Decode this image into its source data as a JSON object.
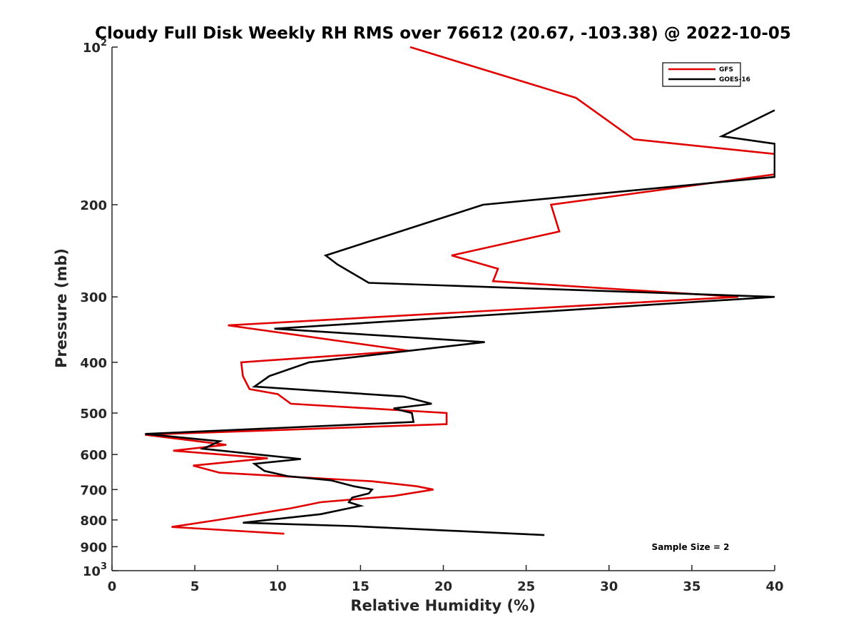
{
  "chart_data": {
    "type": "line",
    "title": "Cloudy Full Disk Weekly RH RMS over 76612 (20.67, -103.38) @ 2022-10-05",
    "xlabel": "Relative Humidity (%)",
    "ylabel": "Pressure (mb)",
    "xlim": [
      0,
      40
    ],
    "ylim": [
      100,
      1000
    ],
    "yscale": "log",
    "y_reversed": true,
    "x_ticks": [
      0,
      5,
      10,
      15,
      20,
      25,
      30,
      35,
      40
    ],
    "x_tick_labels": [
      "0",
      "5",
      "10",
      "15",
      "20",
      "25",
      "30",
      "35",
      "40"
    ],
    "y_ticks": [
      100,
      200,
      300,
      400,
      500,
      600,
      700,
      800,
      900,
      1000
    ],
    "y_tick_labels": [
      {
        "base": "10",
        "exp": "2"
      },
      {
        "base": "200"
      },
      {
        "base": "300"
      },
      {
        "base": "400"
      },
      {
        "base": "500"
      },
      {
        "base": "600"
      },
      {
        "base": "700"
      },
      {
        "base": "800"
      },
      {
        "base": "900"
      },
      {
        "base": "10",
        "exp": "3"
      }
    ],
    "legend_position": "top-right",
    "annotation": "Sample Size = 2",
    "series": [
      {
        "name": "GFS",
        "color": "#e00000",
        "points": [
          [
            18.0,
            100
          ],
          [
            28.0,
            125
          ],
          [
            31.5,
            150
          ],
          [
            40.0,
            160
          ],
          [
            40.0,
            175
          ],
          [
            26.5,
            200
          ],
          [
            27.0,
            225
          ],
          [
            20.5,
            250
          ],
          [
            23.3,
            265
          ],
          [
            23.0,
            280
          ],
          [
            37.8,
            300
          ],
          [
            7.0,
            340
          ],
          [
            17.9,
            380
          ],
          [
            7.8,
            400
          ],
          [
            7.9,
            425
          ],
          [
            8.3,
            450
          ],
          [
            10.0,
            460
          ],
          [
            10.8,
            480
          ],
          [
            20.2,
            500
          ],
          [
            20.2,
            525
          ],
          [
            2.0,
            550
          ],
          [
            6.9,
            575
          ],
          [
            3.7,
            590
          ],
          [
            9.4,
            610
          ],
          [
            4.9,
            630
          ],
          [
            6.5,
            650
          ],
          [
            15.7,
            675
          ],
          [
            18.4,
            690
          ],
          [
            19.4,
            700
          ],
          [
            17.0,
            720
          ],
          [
            12.6,
            740
          ],
          [
            10.8,
            760
          ],
          [
            6.4,
            800
          ],
          [
            3.6,
            825
          ],
          [
            10.4,
            850
          ]
        ]
      },
      {
        "name": "GOES-16",
        "color": "#000000",
        "points": [
          [
            40.0,
            132
          ],
          [
            36.8,
            148
          ],
          [
            40.0,
            153
          ],
          [
            40.0,
            177
          ],
          [
            22.4,
            200
          ],
          [
            12.9,
            250
          ],
          [
            13.6,
            260
          ],
          [
            15.5,
            282
          ],
          [
            40.0,
            300
          ],
          [
            9.8,
            345
          ],
          [
            22.5,
            366
          ],
          [
            11.9,
            400
          ],
          [
            9.5,
            425
          ],
          [
            8.6,
            445
          ],
          [
            17.6,
            465
          ],
          [
            19.3,
            480
          ],
          [
            17.0,
            490
          ],
          [
            18.1,
            500
          ],
          [
            18.2,
            520
          ],
          [
            2.0,
            548
          ],
          [
            6.5,
            566
          ],
          [
            5.5,
            585
          ],
          [
            11.4,
            612
          ],
          [
            8.6,
            625
          ],
          [
            9.2,
            645
          ],
          [
            10.6,
            660
          ],
          [
            13.2,
            672
          ],
          [
            14.6,
            690
          ],
          [
            15.7,
            700
          ],
          [
            15.5,
            712
          ],
          [
            14.5,
            725
          ],
          [
            14.3,
            740
          ],
          [
            15.0,
            752
          ],
          [
            12.6,
            780
          ],
          [
            7.9,
            810
          ],
          [
            14.5,
            822
          ],
          [
            26.1,
            855
          ]
        ]
      }
    ]
  }
}
